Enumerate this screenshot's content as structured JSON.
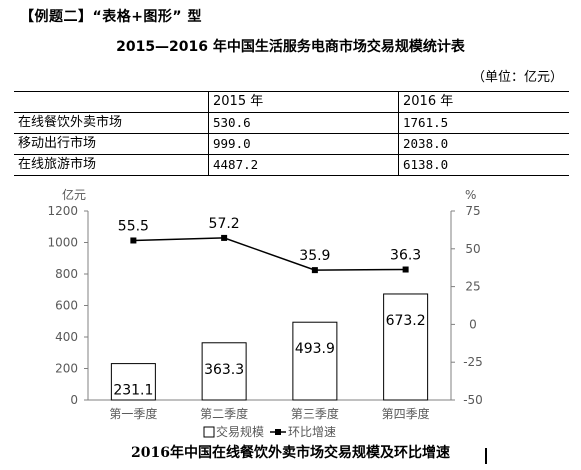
{
  "heading": "【例题二】“表格+图形” 型",
  "table": {
    "title": "2015—2016 年中国生活服务电商市场交易规模统计表",
    "unit": "（单位：亿元）",
    "columns": [
      "",
      "2015 年",
      "2016 年"
    ],
    "rows": [
      {
        "name": "在线餐饮外卖市场",
        "v2015": "530.6",
        "v2016": "1761.5"
      },
      {
        "name": "移动出行市场",
        "v2015": "999.0",
        "v2016": "2038.0"
      },
      {
        "name": "在线旅游市场",
        "v2015": "4487.2",
        "v2016": "6138.0"
      }
    ]
  },
  "chart_data": {
    "type": "bar",
    "title": "2016年中国在线餐饮外卖市场交易规模及环比增速",
    "categories": [
      "第一季度",
      "第二季度",
      "第三季度",
      "第四季度"
    ],
    "left_axis_label": "亿元",
    "right_axis_label": "%",
    "ylim_left": [
      0,
      1200
    ],
    "yticks_left": [
      0,
      200,
      400,
      600,
      800,
      1000,
      1200
    ],
    "ylim_right": [
      -50,
      75
    ],
    "yticks_right": [
      -50,
      -25,
      0,
      25,
      50,
      75
    ],
    "series": [
      {
        "name": "交易规模",
        "type": "bar",
        "axis": "left",
        "values": [
          231.1,
          363.3,
          493.9,
          673.2
        ],
        "labels": [
          "231.1",
          "363.3",
          "493.9",
          "673.2"
        ]
      },
      {
        "name": "环比增速",
        "type": "line",
        "axis": "right",
        "values": [
          55.5,
          57.2,
          35.9,
          36.3
        ],
        "labels": [
          "55.5",
          "57.2",
          "35.9",
          "36.3"
        ]
      }
    ],
    "legend_position": "bottom",
    "colors": {
      "bar_fill": "#ffffff",
      "bar_stroke": "#000000",
      "line": "#000000",
      "axis": "#808080",
      "text": "#595959"
    }
  }
}
